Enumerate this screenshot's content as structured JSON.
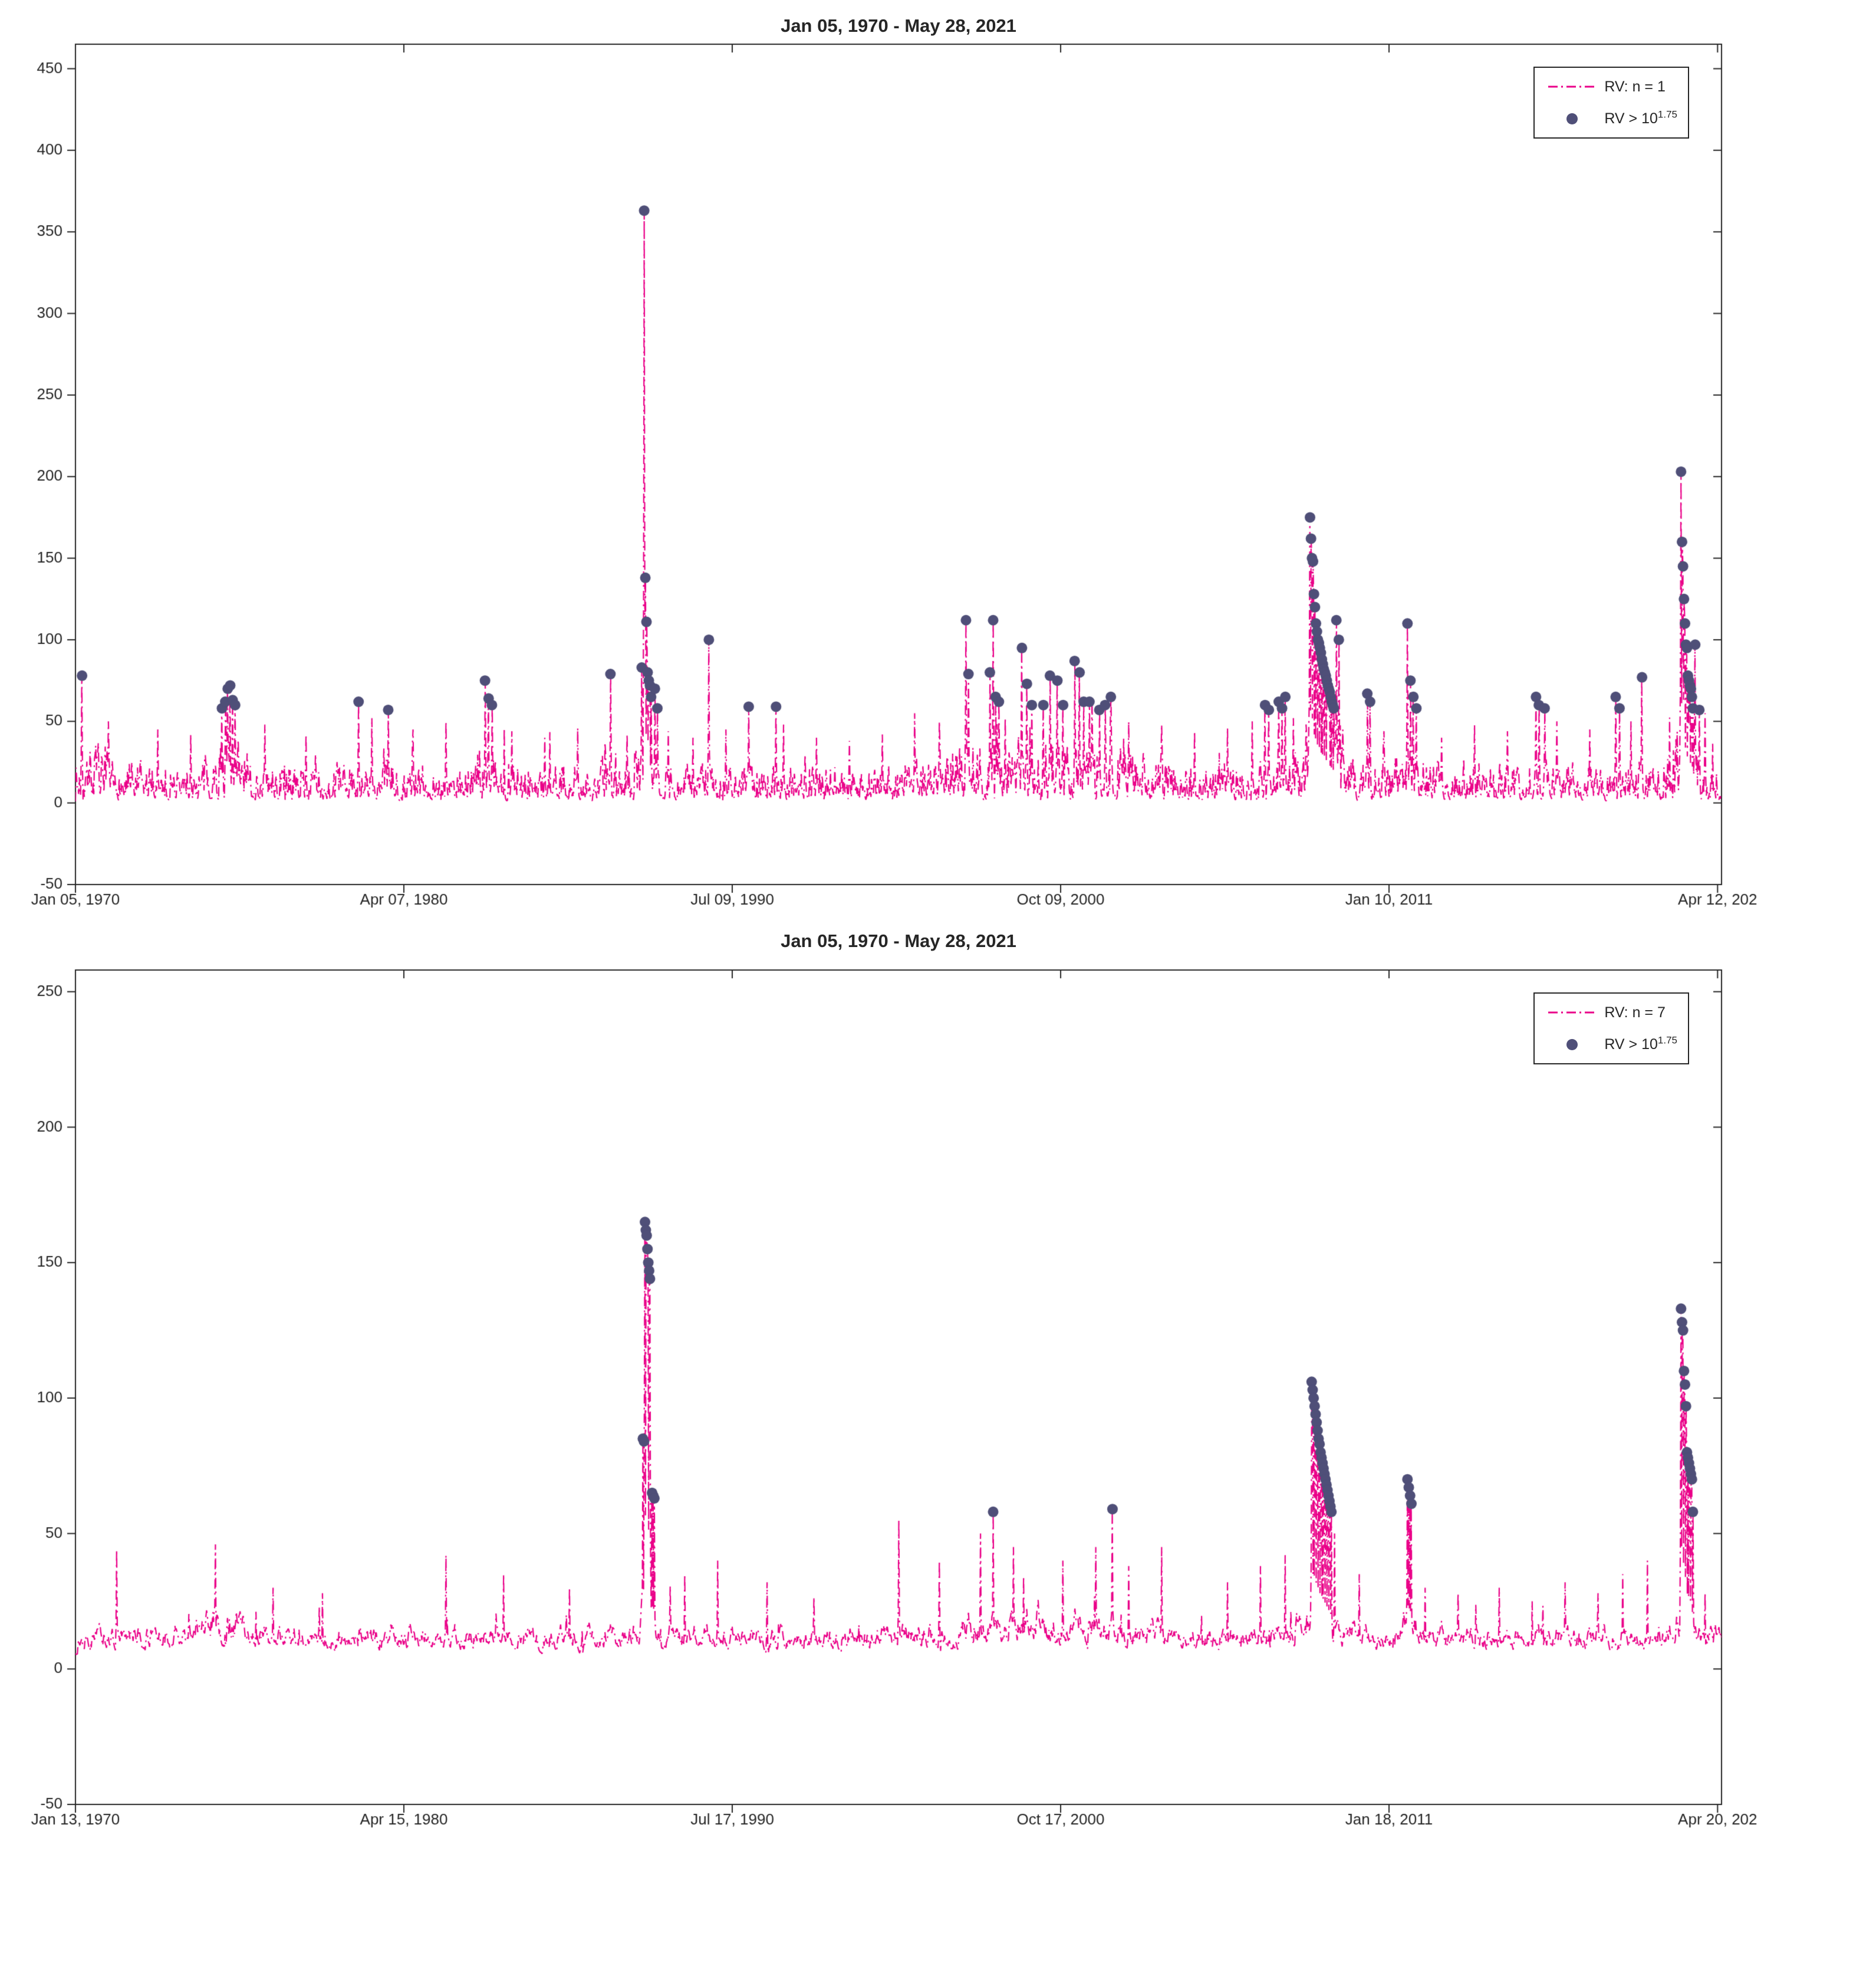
{
  "colors": {
    "line": "#ea0088",
    "marker": "#4f4f78",
    "axis": "#262626",
    "background": "#ffffff"
  },
  "chart_data": [
    {
      "type": "line",
      "title": "Jan 05, 1970 - May 28, 2021",
      "xlabel": "",
      "ylabel": "",
      "grid": false,
      "legend_position": "top-right",
      "legend": [
        {
          "type": "line",
          "label": "RV: n = 1"
        },
        {
          "type": "marker",
          "label_prefix": "RV > 10",
          "label_exp": "1.75"
        }
      ],
      "ylim": [
        -50,
        465
      ],
      "yticks": [
        -50,
        0,
        50,
        100,
        150,
        200,
        250,
        300,
        350,
        400,
        450
      ],
      "xticks": {
        "fracs": [
          0,
          0.1995,
          0.399,
          0.5985,
          0.798,
          0.9976
        ],
        "labels": [
          "Jan 05, 1970",
          "Apr 07, 1980",
          "Jul 09, 1990",
          "Oct 09, 2000",
          "Jan 10, 2011",
          "Apr 12, 202"
        ]
      },
      "noise": {
        "floor": 1,
        "base_amp": 13,
        "power": 2.2,
        "ar": 0.35,
        "burst_p": 0.03,
        "burst_mult": 2.2,
        "seed": 7,
        "n_points": 2600
      },
      "vol_clusters": [
        {
          "c": 0.01,
          "w": 0.006,
          "a": 8
        },
        {
          "c": 0.093,
          "w": 0.01,
          "a": 10
        },
        {
          "c": 0.25,
          "w": 0.008,
          "a": 6
        },
        {
          "c": 0.346,
          "w": 0.006,
          "a": 12
        },
        {
          "c": 0.54,
          "w": 0.015,
          "a": 8
        },
        {
          "c": 0.6,
          "w": 0.03,
          "a": 9
        },
        {
          "c": 0.755,
          "w": 0.012,
          "a": 20
        },
        {
          "c": 0.81,
          "w": 0.006,
          "a": 8
        },
        {
          "c": 0.977,
          "w": 0.006,
          "a": 16
        }
      ],
      "line_peaks": [
        [
          0.02,
          50
        ],
        [
          0.05,
          45
        ],
        [
          0.07,
          42
        ],
        [
          0.115,
          48
        ],
        [
          0.14,
          42
        ],
        [
          0.18,
          52
        ],
        [
          0.205,
          45
        ],
        [
          0.225,
          50
        ],
        [
          0.265,
          44
        ],
        [
          0.285,
          40
        ],
        [
          0.305,
          46
        ],
        [
          0.335,
          42
        ],
        [
          0.36,
          44
        ],
        [
          0.375,
          40
        ],
        [
          0.395,
          45
        ],
        [
          0.43,
          48
        ],
        [
          0.45,
          40
        ],
        [
          0.47,
          38
        ],
        [
          0.49,
          42
        ],
        [
          0.51,
          55
        ],
        [
          0.525,
          50
        ],
        [
          0.565,
          52
        ],
        [
          0.64,
          50
        ],
        [
          0.66,
          48
        ],
        [
          0.68,
          44
        ],
        [
          0.7,
          46
        ],
        [
          0.715,
          50
        ],
        [
          0.74,
          52
        ],
        [
          0.77,
          45
        ],
        [
          0.795,
          44
        ],
        [
          0.83,
          40
        ],
        [
          0.85,
          48
        ],
        [
          0.87,
          44
        ],
        [
          0.9,
          50
        ],
        [
          0.92,
          45
        ],
        [
          0.945,
          50
        ],
        [
          0.99,
          55
        ]
      ],
      "outliers": [
        [
          0.004,
          78
        ],
        [
          0.089,
          58
        ],
        [
          0.091,
          62
        ],
        [
          0.0925,
          70
        ],
        [
          0.094,
          72
        ],
        [
          0.0955,
          63
        ],
        [
          0.097,
          60
        ],
        [
          0.172,
          62
        ],
        [
          0.19,
          57
        ],
        [
          0.2488,
          75
        ],
        [
          0.251,
          64
        ],
        [
          0.253,
          60
        ],
        [
          0.325,
          79
        ],
        [
          0.344,
          83
        ],
        [
          0.3455,
          363
        ],
        [
          0.3462,
          138
        ],
        [
          0.3469,
          111
        ],
        [
          0.3476,
          80
        ],
        [
          0.3483,
          75
        ],
        [
          0.349,
          72
        ],
        [
          0.3497,
          65
        ],
        [
          0.352,
          70
        ],
        [
          0.3535,
          58
        ],
        [
          0.3848,
          100
        ],
        [
          0.409,
          59
        ],
        [
          0.4256,
          59
        ],
        [
          0.541,
          112
        ],
        [
          0.5425,
          79
        ],
        [
          0.5555,
          80
        ],
        [
          0.5575,
          112
        ],
        [
          0.559,
          65
        ],
        [
          0.561,
          62
        ],
        [
          0.575,
          95
        ],
        [
          0.578,
          73
        ],
        [
          0.581,
          60
        ],
        [
          0.588,
          60
        ],
        [
          0.592,
          78
        ],
        [
          0.5965,
          75
        ],
        [
          0.6,
          60
        ],
        [
          0.607,
          87
        ],
        [
          0.61,
          80
        ],
        [
          0.6125,
          62
        ],
        [
          0.616,
          62
        ],
        [
          0.622,
          57
        ],
        [
          0.6255,
          60
        ],
        [
          0.629,
          65
        ],
        [
          0.7227,
          60
        ],
        [
          0.725,
          57
        ],
        [
          0.731,
          62
        ],
        [
          0.733,
          58
        ],
        [
          0.735,
          65
        ],
        [
          0.75,
          175
        ],
        [
          0.7506,
          162
        ],
        [
          0.7512,
          150
        ],
        [
          0.7518,
          148
        ],
        [
          0.7524,
          128
        ],
        [
          0.753,
          120
        ],
        [
          0.7536,
          110
        ],
        [
          0.7542,
          105
        ],
        [
          0.7548,
          100
        ],
        [
          0.7554,
          98
        ],
        [
          0.756,
          95
        ],
        [
          0.7566,
          92
        ],
        [
          0.7572,
          88
        ],
        [
          0.7578,
          85
        ],
        [
          0.7584,
          82
        ],
        [
          0.759,
          80
        ],
        [
          0.7596,
          78
        ],
        [
          0.7602,
          75
        ],
        [
          0.7608,
          72
        ],
        [
          0.7614,
          70
        ],
        [
          0.762,
          68
        ],
        [
          0.7626,
          65
        ],
        [
          0.7632,
          62
        ],
        [
          0.7638,
          60
        ],
        [
          0.7644,
          58
        ],
        [
          0.766,
          112
        ],
        [
          0.7675,
          100
        ],
        [
          0.7848,
          67
        ],
        [
          0.7865,
          62
        ],
        [
          0.8092,
          110
        ],
        [
          0.811,
          75
        ],
        [
          0.8128,
          65
        ],
        [
          0.8146,
          58
        ],
        [
          0.8873,
          65
        ],
        [
          0.889,
          60
        ],
        [
          0.8925,
          58
        ],
        [
          0.9357,
          65
        ],
        [
          0.938,
          58
        ],
        [
          0.9517,
          77
        ],
        [
          0.9754,
          203
        ],
        [
          0.976,
          160
        ],
        [
          0.9766,
          145
        ],
        [
          0.9772,
          125
        ],
        [
          0.9778,
          110
        ],
        [
          0.9784,
          97
        ],
        [
          0.979,
          95
        ],
        [
          0.9796,
          78
        ],
        [
          0.9802,
          75
        ],
        [
          0.9808,
          72
        ],
        [
          0.9814,
          70
        ],
        [
          0.982,
          65
        ],
        [
          0.9826,
          58
        ],
        [
          0.984,
          97
        ],
        [
          0.9865,
          57
        ]
      ]
    },
    {
      "type": "line",
      "title": "Jan 05, 1970 - May 28, 2021",
      "xlabel": "",
      "ylabel": "",
      "grid": false,
      "legend_position": "top-right",
      "legend": [
        {
          "type": "line",
          "label": "RV: n = 7"
        },
        {
          "type": "marker",
          "label_prefix": "RV > 10",
          "label_exp": "1.75"
        }
      ],
      "ylim": [
        -50,
        258
      ],
      "yticks": [
        -50,
        0,
        50,
        100,
        150,
        200,
        250
      ],
      "xticks": {
        "fracs": [
          0,
          0.1995,
          0.399,
          0.5985,
          0.798,
          0.9976
        ],
        "labels": [
          "Jan 13, 1970",
          "Apr 15, 1980",
          "Jul 17, 1990",
          "Oct 17, 2000",
          "Jan 18, 2011",
          "Apr 20, 202"
        ]
      },
      "noise": {
        "floor": 4,
        "base_amp": 9,
        "power": 1.8,
        "ar": 0.75,
        "burst_p": 0.015,
        "burst_mult": 1.6,
        "seed": 13,
        "n_points": 2600
      },
      "vol_clusters": [
        {
          "c": 0.09,
          "w": 0.012,
          "a": 6
        },
        {
          "c": 0.346,
          "w": 0.005,
          "a": 8
        },
        {
          "c": 0.58,
          "w": 0.04,
          "a": 5
        },
        {
          "c": 0.754,
          "w": 0.01,
          "a": 10
        },
        {
          "c": 0.81,
          "w": 0.005,
          "a": 5
        },
        {
          "c": 0.977,
          "w": 0.005,
          "a": 8
        }
      ],
      "line_peaks": [
        [
          0.025,
          44
        ],
        [
          0.085,
          46
        ],
        [
          0.12,
          30
        ],
        [
          0.15,
          28
        ],
        [
          0.225,
          42
        ],
        [
          0.26,
          35
        ],
        [
          0.3,
          30
        ],
        [
          0.37,
          35
        ],
        [
          0.39,
          40
        ],
        [
          0.42,
          32
        ],
        [
          0.5,
          55
        ],
        [
          0.525,
          40
        ],
        [
          0.55,
          50
        ],
        [
          0.57,
          45
        ],
        [
          0.6,
          40
        ],
        [
          0.62,
          45
        ],
        [
          0.64,
          38
        ],
        [
          0.66,
          45
        ],
        [
          0.7,
          32
        ],
        [
          0.72,
          38
        ],
        [
          0.735,
          42
        ],
        [
          0.765,
          50
        ],
        [
          0.78,
          35
        ],
        [
          0.82,
          30
        ],
        [
          0.84,
          28
        ],
        [
          0.865,
          30
        ],
        [
          0.885,
          25
        ],
        [
          0.905,
          32
        ],
        [
          0.925,
          28
        ],
        [
          0.94,
          35
        ],
        [
          0.955,
          40
        ],
        [
          0.99,
          28
        ]
      ],
      "outliers": [
        [
          0.3447,
          85
        ],
        [
          0.3454,
          84
        ],
        [
          0.346,
          165
        ],
        [
          0.3465,
          162
        ],
        [
          0.347,
          160
        ],
        [
          0.3475,
          155
        ],
        [
          0.348,
          150
        ],
        [
          0.3485,
          147
        ],
        [
          0.349,
          144
        ],
        [
          0.3503,
          65
        ],
        [
          0.351,
          64
        ],
        [
          0.3517,
          63
        ],
        [
          0.5575,
          58
        ],
        [
          0.63,
          59
        ],
        [
          0.751,
          106
        ],
        [
          0.7516,
          103
        ],
        [
          0.7522,
          100
        ],
        [
          0.7528,
          97
        ],
        [
          0.7534,
          94
        ],
        [
          0.754,
          91
        ],
        [
          0.7546,
          88
        ],
        [
          0.7552,
          85
        ],
        [
          0.7558,
          83
        ],
        [
          0.7564,
          80
        ],
        [
          0.757,
          78
        ],
        [
          0.7576,
          76
        ],
        [
          0.7582,
          74
        ],
        [
          0.7588,
          72
        ],
        [
          0.7594,
          70
        ],
        [
          0.76,
          68
        ],
        [
          0.7606,
          66
        ],
        [
          0.7612,
          64
        ],
        [
          0.7618,
          62
        ],
        [
          0.7624,
          60
        ],
        [
          0.763,
          58
        ],
        [
          0.8092,
          70
        ],
        [
          0.81,
          67
        ],
        [
          0.8108,
          64
        ],
        [
          0.8116,
          61
        ],
        [
          0.9754,
          133
        ],
        [
          0.976,
          128
        ],
        [
          0.9766,
          125
        ],
        [
          0.9772,
          110
        ],
        [
          0.9778,
          105
        ],
        [
          0.9784,
          97
        ],
        [
          0.979,
          80
        ],
        [
          0.9796,
          78
        ],
        [
          0.9802,
          76
        ],
        [
          0.9808,
          74
        ],
        [
          0.9814,
          72
        ],
        [
          0.982,
          70
        ],
        [
          0.9826,
          58
        ]
      ]
    }
  ]
}
